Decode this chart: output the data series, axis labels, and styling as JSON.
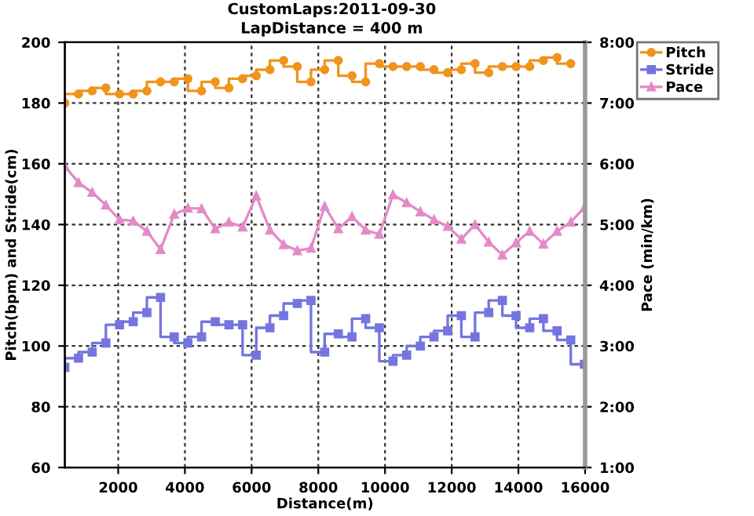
{
  "chart_data": {
    "type": "line",
    "title": "CustomLaps:2011-09-30",
    "subtitle": "LapDistance = 400 m",
    "xlabel": "Distance(m)",
    "ylabel": "Pitch(bpm) and Stride(cm)",
    "y2label": "Pace (min/km)",
    "x": [
      400,
      810,
      1220,
      1630,
      2040,
      2450,
      2860,
      3270,
      3680,
      4090,
      4500,
      4910,
      5320,
      5730,
      6140,
      6550,
      6960,
      7370,
      7780,
      8190,
      8600,
      9010,
      9420,
      9830,
      10240,
      10650,
      11060,
      11470,
      11880,
      12290,
      12700,
      13110,
      13520,
      13930,
      14340,
      14750,
      15160,
      15570,
      15980
    ],
    "series": [
      {
        "name": "Pitch",
        "type": "step",
        "marker": "circle",
        "color": "#f0941e",
        "values": [
          180,
          183,
          184,
          185,
          183,
          183,
          184,
          187,
          187,
          188,
          184,
          187,
          185,
          188,
          189,
          191,
          194,
          192,
          187,
          191,
          194,
          189,
          187,
          193,
          192,
          192,
          192,
          191,
          190,
          191,
          193,
          190,
          192,
          192,
          192,
          194,
          195,
          193,
          null
        ]
      },
      {
        "name": "Stride",
        "type": "step",
        "marker": "square",
        "color": "#7575e0",
        "values": [
          93,
          96,
          98,
          101,
          107,
          108,
          111,
          116,
          103,
          101,
          103,
          108,
          107,
          107,
          97,
          106,
          110,
          114,
          115,
          98,
          104,
          103,
          109,
          106,
          95,
          97,
          100,
          103,
          105,
          110,
          103,
          111,
          115,
          110,
          106,
          109,
          105,
          102,
          94
        ]
      },
      {
        "name": "Pace",
        "marker": "triangle",
        "axis": "y2",
        "color": "#e48ac8",
        "values": [
          5.96,
          5.69,
          5.53,
          5.32,
          5.08,
          5.06,
          4.89,
          4.59,
          5.17,
          5.27,
          5.26,
          4.93,
          5.04,
          4.96,
          5.47,
          4.91,
          4.67,
          4.57,
          4.61,
          5.3,
          4.93,
          5.13,
          4.91,
          4.84,
          5.49,
          5.36,
          5.21,
          5.08,
          4.97,
          4.76,
          5.0,
          4.71,
          4.5,
          4.7,
          4.89,
          4.68,
          4.89,
          5.04,
          5.28
        ]
      }
    ],
    "xlim": [
      400,
      16000
    ],
    "xticks": [
      2000,
      4000,
      6000,
      8000,
      10000,
      12000,
      14000,
      16000
    ],
    "ylim": [
      60,
      200
    ],
    "yticks": [
      60,
      80,
      100,
      120,
      140,
      160,
      180,
      200
    ],
    "y2lim": [
      1,
      8
    ],
    "y2ticks": [
      {
        "value": 1,
        "label": "1:00"
      },
      {
        "value": 2,
        "label": "2:00"
      },
      {
        "value": 3,
        "label": "3:00"
      },
      {
        "value": 4,
        "label": "4:00"
      },
      {
        "value": 5,
        "label": "5:00"
      },
      {
        "value": 6,
        "label": "6:00"
      },
      {
        "value": 7,
        "label": "7:00"
      },
      {
        "value": 8,
        "label": "8:00"
      }
    ],
    "grid": true,
    "legend": "top right",
    "line_style": "solid"
  }
}
